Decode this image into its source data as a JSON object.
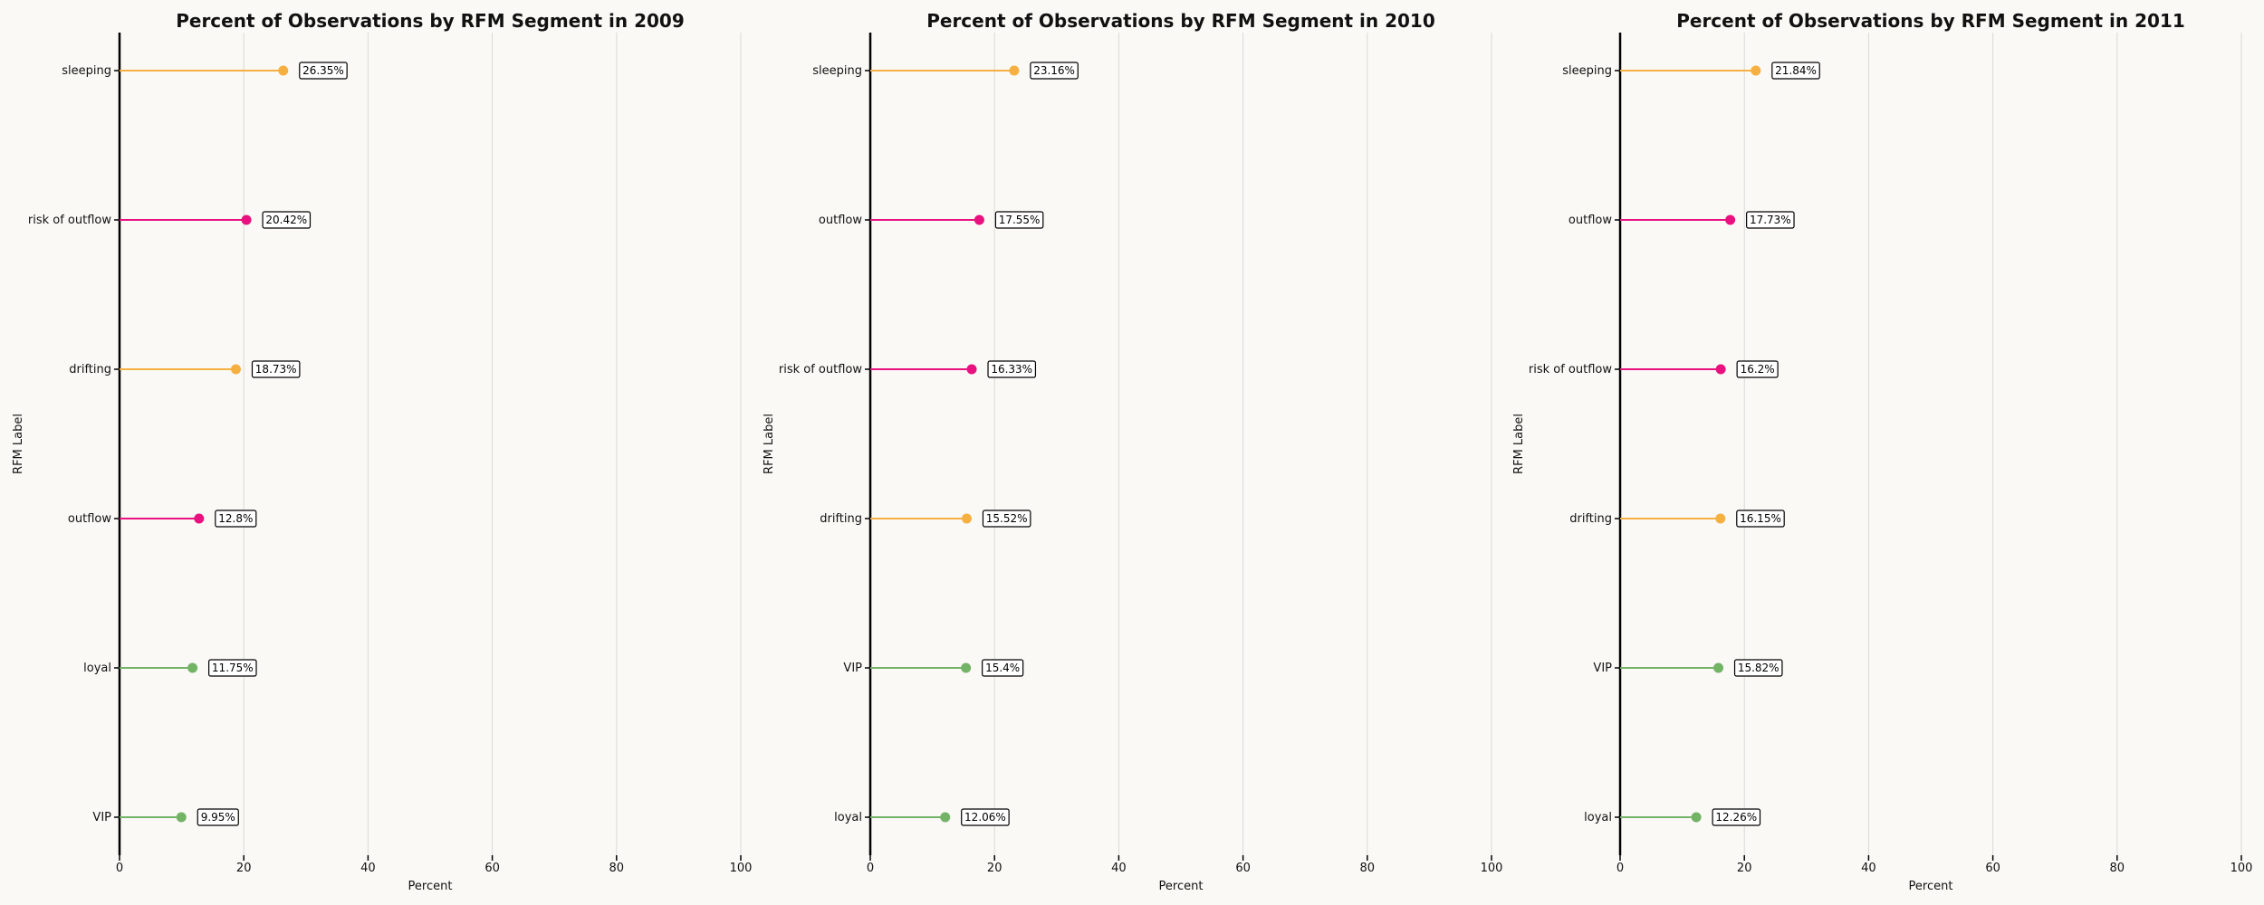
{
  "colors": {
    "sleeping": "#f5b041",
    "drifting": "#f5b041",
    "risk of outflow": "#e8117f",
    "outflow": "#e8117f",
    "loyal": "#73b366",
    "VIP": "#73b366"
  },
  "chart_data": [
    {
      "type": "lollipop",
      "title": "Percent of Observations by RFM Segment in 2009",
      "xlabel": "Percent",
      "ylabel": "RFM Label",
      "xlim": [
        0,
        100
      ],
      "xticks": [
        0,
        20,
        40,
        60,
        80,
        100
      ],
      "grid": "vertical",
      "categories": [
        "sleeping",
        "risk of outflow",
        "drifting",
        "outflow",
        "loyal",
        "VIP"
      ],
      "values": [
        26.35,
        20.42,
        18.73,
        12.8,
        11.75,
        9.95
      ],
      "labels": [
        "26.35%",
        "20.42%",
        "18.73%",
        "12.8%",
        "11.75%",
        "9.95%"
      ]
    },
    {
      "type": "lollipop",
      "title": "Percent of Observations by RFM Segment in 2010",
      "xlabel": "Percent",
      "ylabel": "RFM Label",
      "xlim": [
        0,
        100
      ],
      "xticks": [
        0,
        20,
        40,
        60,
        80,
        100
      ],
      "grid": "vertical",
      "categories": [
        "sleeping",
        "outflow",
        "risk of outflow",
        "drifting",
        "VIP",
        "loyal"
      ],
      "values": [
        23.16,
        17.55,
        16.33,
        15.52,
        15.4,
        12.06
      ],
      "labels": [
        "23.16%",
        "17.55%",
        "16.33%",
        "15.52%",
        "15.4%",
        "12.06%"
      ]
    },
    {
      "type": "lollipop",
      "title": "Percent of Observations by RFM Segment in 2011",
      "xlabel": "Percent",
      "ylabel": "RFM Label",
      "xlim": [
        0,
        100
      ],
      "xticks": [
        0,
        20,
        40,
        60,
        80,
        100
      ],
      "grid": "vertical",
      "categories": [
        "sleeping",
        "outflow",
        "risk of outflow",
        "drifting",
        "VIP",
        "loyal"
      ],
      "values": [
        21.84,
        17.73,
        16.2,
        16.15,
        15.82,
        12.26
      ],
      "labels": [
        "21.84%",
        "17.73%",
        "16.2%",
        "16.15%",
        "15.82%",
        "12.26%"
      ]
    }
  ]
}
